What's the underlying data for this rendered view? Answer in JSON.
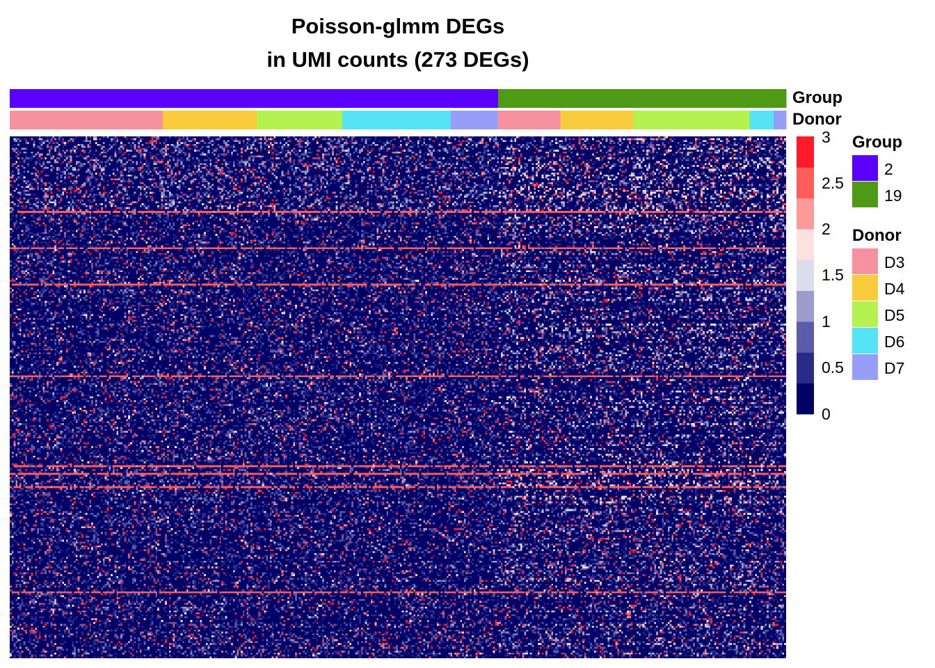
{
  "chart_data": {
    "type": "heatmap",
    "title": "Poisson-glmm DEGs",
    "subtitle": "in UMI counts (273 DEGs)",
    "n_rows": 273,
    "n_cols": 400,
    "color_scale": {
      "min": 0,
      "max": 3,
      "ticks": [
        "3",
        "2.5",
        "2",
        "1.5",
        "1",
        "0.5",
        "0"
      ],
      "tick_values": [
        3,
        2.5,
        2,
        1.5,
        1,
        0.5,
        0
      ],
      "bins": [
        {
          "upto": 0.375,
          "color": "#000066"
        },
        {
          "upto": 0.75,
          "color": "#2a2a88"
        },
        {
          "upto": 1.125,
          "color": "#5c5cac"
        },
        {
          "upto": 1.5,
          "color": "#9c9ccc"
        },
        {
          "upto": 1.875,
          "color": "#dcdcee"
        },
        {
          "upto": 2.25,
          "color": "#fde0e0"
        },
        {
          "upto": 2.625,
          "color": "#ff9a9a"
        },
        {
          "upto": 3.0,
          "color": "#ff5c5c"
        },
        {
          "upto": 99,
          "color": "#ff1a2a"
        }
      ]
    },
    "annotations": {
      "group": {
        "label": "Group",
        "segments": [
          {
            "value": "2",
            "start": 0,
            "end": 0.629
          },
          {
            "value": "19",
            "start": 0.629,
            "end": 1.0
          }
        ]
      },
      "donor": {
        "label": "Donor",
        "segments": [
          {
            "value": "D3",
            "start": 0,
            "end": 0.197
          },
          {
            "value": "D4",
            "start": 0.197,
            "end": 0.318
          },
          {
            "value": "D5",
            "start": 0.318,
            "end": 0.428
          },
          {
            "value": "D6",
            "start": 0.428,
            "end": 0.568
          },
          {
            "value": "D7",
            "start": 0.568,
            "end": 0.629
          },
          {
            "value": "D3",
            "start": 0.629,
            "end": 0.709
          },
          {
            "value": "D4",
            "start": 0.709,
            "end": 0.803
          },
          {
            "value": "D5",
            "start": 0.803,
            "end": 0.953
          },
          {
            "value": "D6",
            "start": 0.953,
            "end": 0.984
          },
          {
            "value": "D7",
            "start": 0.984,
            "end": 1.0
          }
        ]
      }
    },
    "legend": {
      "group": {
        "title": "Group",
        "items": [
          {
            "label": "2",
            "color": "#5b00ff"
          },
          {
            "label": "19",
            "color": "#4f9a14"
          }
        ]
      },
      "donor": {
        "title": "Donor",
        "items": [
          {
            "label": "D3",
            "color": "#f8919f"
          },
          {
            "label": "D4",
            "color": "#facb3d"
          },
          {
            "label": "D5",
            "color": "#b5f24f"
          },
          {
            "label": "D6",
            "color": "#56e3f6"
          },
          {
            "label": "D7",
            "color": "#969efa"
          }
        ]
      }
    },
    "legend_placement": "right"
  }
}
